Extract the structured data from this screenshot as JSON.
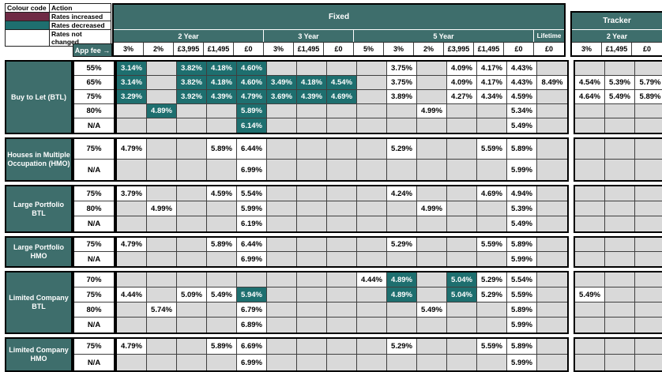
{
  "colors": {
    "increased": "#6F2B45",
    "decreased": "#1E6F6F",
    "header_teal": "#3E6E6C",
    "empty_cell": "#D9D9D9"
  },
  "legend": {
    "header": [
      "Colour code",
      "Action"
    ],
    "rows": [
      {
        "color": "#6F2B45",
        "label": "Rates increased"
      },
      {
        "color": "#1E6F6F",
        "label": "Rates decreased"
      },
      {
        "color": "#FFFFFF",
        "label": "Rates not changed"
      }
    ]
  },
  "header": {
    "fixed_label": "Fixed",
    "tracker_label": "Tracker",
    "app_fee_label": "App fee →",
    "fixed_groups": [
      {
        "label": "2 Year",
        "cols": [
          "3%",
          "2%",
          "£3,995",
          "£1,495",
          "£0"
        ]
      },
      {
        "label": "3 Year",
        "cols": [
          "3%",
          "£1,495",
          "£0"
        ]
      },
      {
        "label": "5 Year",
        "cols": [
          "5%",
          "3%",
          "2%",
          "£3,995",
          "£1,495",
          "£0"
        ]
      },
      {
        "label": "Lifetime",
        "cols": [
          "£0"
        ]
      }
    ],
    "tracker_groups": [
      {
        "label": "2 Year",
        "cols": [
          "3%",
          "£1,495",
          "£0"
        ]
      }
    ]
  },
  "sections": [
    {
      "label": "Buy to Let (BTL)",
      "rows": [
        {
          "ltv": "55%",
          "fixed": [
            "3.14%",
            "",
            "3.82%",
            "4.18%",
            "4.60%",
            "",
            "",
            "",
            "",
            "3.75%",
            "",
            "4.09%",
            "4.17%",
            "4.43%",
            ""
          ],
          "fixed_decreased": [
            0,
            2,
            3,
            4
          ],
          "tracker": [
            "",
            "",
            ""
          ],
          "tracker_decreased": []
        },
        {
          "ltv": "65%",
          "fixed": [
            "3.14%",
            "",
            "3.82%",
            "4.18%",
            "4.60%",
            "3.49%",
            "4.18%",
            "4.54%",
            "",
            "3.75%",
            "",
            "4.09%",
            "4.17%",
            "4.43%",
            "8.49%"
          ],
          "fixed_decreased": [
            0,
            2,
            3,
            4,
            5,
            6,
            7
          ],
          "tracker": [
            "4.54%",
            "5.39%",
            "5.79%"
          ],
          "tracker_decreased": []
        },
        {
          "ltv": "75%",
          "fixed": [
            "3.29%",
            "",
            "3.92%",
            "4.39%",
            "4.79%",
            "3.69%",
            "4.39%",
            "4.69%",
            "",
            "3.89%",
            "",
            "4.27%",
            "4.34%",
            "4.59%",
            ""
          ],
          "fixed_decreased": [
            0,
            2,
            3,
            4,
            5,
            6,
            7
          ],
          "tracker": [
            "4.64%",
            "5.49%",
            "5.89%"
          ],
          "tracker_decreased": []
        },
        {
          "ltv": "80%",
          "fixed": [
            "",
            "4.89%",
            "",
            "",
            "5.89%",
            "",
            "",
            "",
            "",
            "",
            "4.99%",
            "",
            "",
            "5.34%",
            ""
          ],
          "fixed_decreased": [
            1,
            4
          ],
          "tracker": [
            "",
            "",
            ""
          ],
          "tracker_decreased": []
        },
        {
          "ltv": "N/A",
          "fixed": [
            "",
            "",
            "",
            "",
            "6.14%",
            "",
            "",
            "",
            "",
            "",
            "",
            "",
            "",
            "5.49%",
            ""
          ],
          "fixed_decreased": [
            4
          ],
          "tracker": [
            "",
            "",
            ""
          ],
          "tracker_decreased": []
        }
      ]
    },
    {
      "label": "Houses in Multiple Occupation (HMO)",
      "rows": [
        {
          "ltv": "75%",
          "fixed": [
            "4.79%",
            "",
            "",
            "5.89%",
            "6.44%",
            "",
            "",
            "",
            "",
            "5.29%",
            "",
            "",
            "5.59%",
            "5.89%",
            ""
          ],
          "fixed_decreased": [],
          "tracker": [
            "",
            "",
            ""
          ],
          "tracker_decreased": []
        },
        {
          "ltv": "N/A",
          "fixed": [
            "",
            "",
            "",
            "",
            "6.99%",
            "",
            "",
            "",
            "",
            "",
            "",
            "",
            "",
            "5.99%",
            ""
          ],
          "fixed_decreased": [],
          "tracker": [
            "",
            "",
            ""
          ],
          "tracker_decreased": []
        }
      ]
    },
    {
      "label": "Large Portfolio BTL",
      "rows": [
        {
          "ltv": "75%",
          "fixed": [
            "3.79%",
            "",
            "",
            "4.59%",
            "5.54%",
            "",
            "",
            "",
            "",
            "4.24%",
            "",
            "",
            "4.69%",
            "4.94%",
            ""
          ],
          "fixed_decreased": [],
          "tracker": [
            "",
            "",
            ""
          ],
          "tracker_decreased": []
        },
        {
          "ltv": "80%",
          "fixed": [
            "",
            "4.99%",
            "",
            "",
            "5.99%",
            "",
            "",
            "",
            "",
            "",
            "4.99%",
            "",
            "",
            "5.39%",
            ""
          ],
          "fixed_decreased": [],
          "tracker": [
            "",
            "",
            ""
          ],
          "tracker_decreased": []
        },
        {
          "ltv": "N/A",
          "fixed": [
            "",
            "",
            "",
            "",
            "6.19%",
            "",
            "",
            "",
            "",
            "",
            "",
            "",
            "",
            "5.49%",
            ""
          ],
          "fixed_decreased": [],
          "tracker": [
            "",
            "",
            ""
          ],
          "tracker_decreased": []
        }
      ]
    },
    {
      "label": "Large Portfolio HMO",
      "rows": [
        {
          "ltv": "75%",
          "fixed": [
            "4.79%",
            "",
            "",
            "5.89%",
            "6.44%",
            "",
            "",
            "",
            "",
            "5.29%",
            "",
            "",
            "5.59%",
            "5.89%",
            ""
          ],
          "fixed_decreased": [],
          "tracker": [
            "",
            "",
            ""
          ],
          "tracker_decreased": []
        },
        {
          "ltv": "N/A",
          "fixed": [
            "",
            "",
            "",
            "",
            "6.99%",
            "",
            "",
            "",
            "",
            "",
            "",
            "",
            "",
            "5.99%",
            ""
          ],
          "fixed_decreased": [],
          "tracker": [
            "",
            "",
            ""
          ],
          "tracker_decreased": []
        }
      ]
    },
    {
      "label": "Limited Company BTL",
      "rows": [
        {
          "ltv": "70%",
          "fixed": [
            "",
            "",
            "",
            "",
            "",
            "",
            "",
            "",
            "4.44%",
            "4.89%",
            "",
            "5.04%",
            "5.29%",
            "5.54%",
            ""
          ],
          "fixed_decreased": [
            9,
            11
          ],
          "tracker": [
            "",
            "",
            ""
          ],
          "tracker_decreased": []
        },
        {
          "ltv": "75%",
          "fixed": [
            "4.44%",
            "",
            "5.09%",
            "5.49%",
            "5.94%",
            "",
            "",
            "",
            "",
            "4.89%",
            "",
            "5.04%",
            "5.29%",
            "5.59%",
            ""
          ],
          "fixed_decreased": [
            4,
            9,
            11
          ],
          "tracker": [
            "5.49%",
            "",
            ""
          ],
          "tracker_decreased": []
        },
        {
          "ltv": "80%",
          "fixed": [
            "",
            "5.74%",
            "",
            "",
            "6.79%",
            "",
            "",
            "",
            "",
            "",
            "5.49%",
            "",
            "",
            "5.89%",
            ""
          ],
          "fixed_decreased": [],
          "tracker": [
            "",
            "",
            ""
          ],
          "tracker_decreased": []
        },
        {
          "ltv": "N/A",
          "fixed": [
            "",
            "",
            "",
            "",
            "6.89%",
            "",
            "",
            "",
            "",
            "",
            "",
            "",
            "",
            "5.99%",
            ""
          ],
          "fixed_decreased": [],
          "tracker": [
            "",
            "",
            ""
          ],
          "tracker_decreased": []
        }
      ]
    },
    {
      "label": "Limited Company HMO",
      "rows": [
        {
          "ltv": "75%",
          "fixed": [
            "4.79%",
            "",
            "",
            "5.89%",
            "6.69%",
            "",
            "",
            "",
            "",
            "5.29%",
            "",
            "",
            "5.59%",
            "5.89%",
            ""
          ],
          "fixed_decreased": [],
          "tracker": [
            "",
            "",
            ""
          ],
          "tracker_decreased": []
        },
        {
          "ltv": "N/A",
          "fixed": [
            "",
            "",
            "",
            "",
            "6.99%",
            "",
            "",
            "",
            "",
            "",
            "",
            "",
            "",
            "5.99%",
            ""
          ],
          "fixed_decreased": [],
          "tracker": [
            "",
            "",
            ""
          ],
          "tracker_decreased": []
        }
      ]
    }
  ]
}
